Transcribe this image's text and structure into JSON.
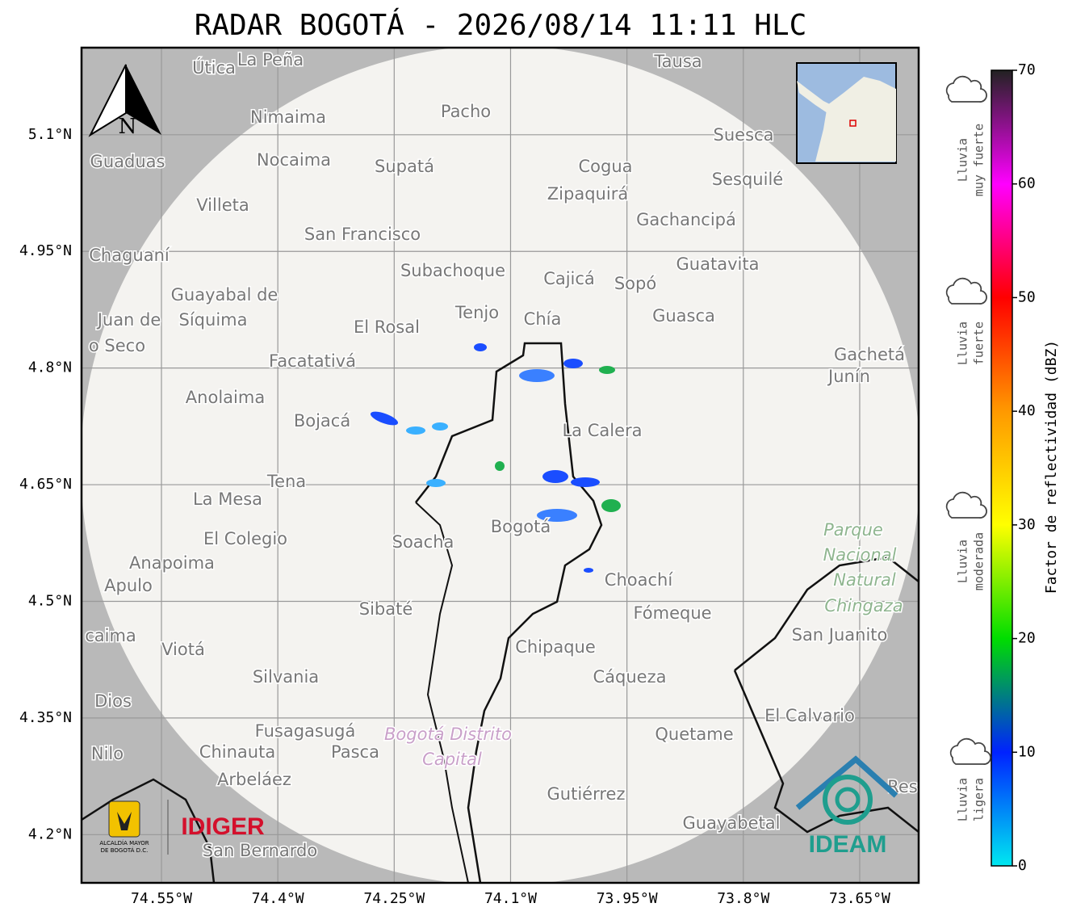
{
  "title": "RADAR BOGOTÁ - 2026/08/14 11:11 HLC",
  "map": {
    "xlim": [
      -74.653,
      -73.574
    ],
    "ylim": [
      4.138,
      5.212
    ],
    "lon_ticks": [
      {
        "value": -74.55,
        "label": "74.55°W"
      },
      {
        "value": -74.4,
        "label": "74.4°W"
      },
      {
        "value": -74.25,
        "label": "74.25°W"
      },
      {
        "value": -74.1,
        "label": "74.1°W"
      },
      {
        "value": -73.95,
        "label": "73.95°W"
      },
      {
        "value": -73.8,
        "label": "73.8°W"
      },
      {
        "value": -73.65,
        "label": "73.65°W"
      }
    ],
    "lat_ticks": [
      {
        "value": 5.1,
        "label": "5.1°N"
      },
      {
        "value": 4.95,
        "label": "4.95°N"
      },
      {
        "value": 4.8,
        "label": "4.8°N"
      },
      {
        "value": 4.65,
        "label": "4.65°N"
      },
      {
        "value": 4.5,
        "label": "4.5°N"
      },
      {
        "value": 4.35,
        "label": "4.35°N"
      },
      {
        "value": 4.2,
        "label": "4.2°N"
      }
    ],
    "north": "N",
    "places": [
      "Útica",
      "La Peña",
      "Tausa",
      "Pacho",
      "Nimaima",
      "Suesca",
      "Guaduas",
      "Nocaima",
      "Supatá",
      "Cogua",
      "Sesquilé",
      "Zipaquirá",
      "Villeta",
      "Gachancipá",
      "San Francisco",
      "Chaguaní",
      "Guatavita",
      "Subachoque",
      "Cajicá",
      "Sopó",
      "Guayabal de",
      "Síquima",
      "Juan de",
      "Tenjo",
      "Chía",
      "Guasca",
      "El Rosal",
      "o Seco",
      "Facatativá",
      "Gachetá",
      "Junín",
      "Anolaima",
      "Bojacá",
      "La Calera",
      "Tena",
      "La Mesa",
      "Soacha",
      "Bogotá",
      "El Colegio",
      "Anapoima",
      "Apulo",
      "Choachí",
      "Sibaté",
      "Fómeque",
      "San Juanito",
      "caima",
      "Viotá",
      "Chipaque",
      "Silvania",
      "Cáqueza",
      "Dios",
      "El Calvario",
      "Fusagasugá",
      "Quetame",
      "Nilo",
      "Chinauta",
      "Pasca",
      "Arbeláez",
      "Gutiérrez",
      "Res",
      "Guayabetal",
      "San Bernardo"
    ],
    "park": [
      "Parque",
      "Nacional",
      "Natural",
      "Chingaza"
    ],
    "district": [
      "Bogotá Distrito",
      "Capital"
    ]
  },
  "logos": {
    "alcaldia": [
      "ALCALDÍA MAYOR",
      "DE BOGOTÁ D.C."
    ],
    "idiger": "IDIGER",
    "ideam": "IDEAM"
  },
  "colorbar": {
    "label": "Factor de reflectividad (dBZ)",
    "lim": [
      0,
      70
    ],
    "ticks": [
      0,
      10,
      20,
      30,
      40,
      50,
      60,
      70
    ],
    "colors": [
      "#00e8f0",
      "#0022ff",
      "#00dd00",
      "#ffff00",
      "#ff9900",
      "#ff0000",
      "#ff00ff",
      "#222222"
    ]
  },
  "rain_levels": [
    [
      "Lluvia",
      "muy fuerte"
    ],
    [
      "Lluvia",
      "fuerte"
    ],
    [
      "Lluvia",
      "moderada"
    ],
    [
      "Lluvia",
      "ligera"
    ]
  ]
}
